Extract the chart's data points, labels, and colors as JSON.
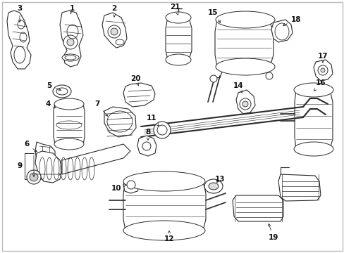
{
  "background_color": "#ffffff",
  "line_color": "#2a2a2a",
  "figsize": [
    4.89,
    3.6
  ],
  "dpi": 100,
  "border_color": "#bbbbbb",
  "parts": {
    "label_fontsize": 7.5,
    "arrow_lw": 0.6
  }
}
